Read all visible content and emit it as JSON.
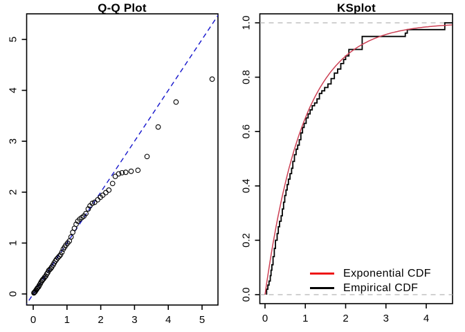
{
  "window": {
    "background": "#ffffff"
  },
  "chart_data": [
    {
      "type": "scatter",
      "title": "Q-Q Plot",
      "xlabel": "",
      "ylabel": "",
      "x_tick_labels": [
        "0",
        "1",
        "2",
        "3",
        "4",
        "5"
      ],
      "x_tick_values": [
        0,
        1,
        2,
        3,
        4,
        5
      ],
      "y_tick_labels": [
        "0",
        "1",
        "2",
        "3",
        "4",
        "5"
      ],
      "y_tick_values": [
        0,
        1,
        2,
        3,
        4,
        5
      ],
      "xlim": [
        -0.2,
        5.47
      ],
      "ylim": [
        -0.22,
        5.5
      ],
      "grid": false,
      "point_style": {
        "shape": "open-circle",
        "color": "#000000"
      },
      "reference_line": {
        "slope": 1,
        "intercept": 0,
        "style": "dashed",
        "color": "#1414cc"
      },
      "points": [
        [
          0.02,
          0.02
        ],
        [
          0.03,
          0.03
        ],
        [
          0.05,
          0.04
        ],
        [
          0.07,
          0.06
        ],
        [
          0.09,
          0.08
        ],
        [
          0.11,
          0.1
        ],
        [
          0.13,
          0.12
        ],
        [
          0.16,
          0.14
        ],
        [
          0.18,
          0.17
        ],
        [
          0.21,
          0.2
        ],
        [
          0.23,
          0.23
        ],
        [
          0.26,
          0.26
        ],
        [
          0.28,
          0.28
        ],
        [
          0.31,
          0.3
        ],
        [
          0.34,
          0.33
        ],
        [
          0.37,
          0.35
        ],
        [
          0.4,
          0.39
        ],
        [
          0.43,
          0.42
        ],
        [
          0.46,
          0.46
        ],
        [
          0.49,
          0.48
        ],
        [
          0.52,
          0.5
        ],
        [
          0.55,
          0.53
        ],
        [
          0.59,
          0.57
        ],
        [
          0.62,
          0.61
        ],
        [
          0.66,
          0.65
        ],
        [
          0.69,
          0.68
        ],
        [
          0.73,
          0.71
        ],
        [
          0.77,
          0.74
        ],
        [
          0.81,
          0.77
        ],
        [
          0.85,
          0.82
        ],
        [
          0.89,
          0.88
        ],
        [
          0.93,
          0.92
        ],
        [
          0.97,
          0.96
        ],
        [
          1.02,
          1.0
        ],
        [
          1.07,
          1.04
        ],
        [
          1.12,
          1.12
        ],
        [
          1.17,
          1.21
        ],
        [
          1.22,
          1.29
        ],
        [
          1.27,
          1.37
        ],
        [
          1.32,
          1.43
        ],
        [
          1.38,
          1.47
        ],
        [
          1.44,
          1.5
        ],
        [
          1.5,
          1.53
        ],
        [
          1.56,
          1.58
        ],
        [
          1.63,
          1.67
        ],
        [
          1.68,
          1.73
        ],
        [
          1.75,
          1.78
        ],
        [
          1.82,
          1.8
        ],
        [
          1.91,
          1.85
        ],
        [
          1.99,
          1.9
        ],
        [
          2.06,
          1.94
        ],
        [
          2.15,
          1.99
        ],
        [
          2.24,
          2.04
        ],
        [
          2.35,
          2.17
        ],
        [
          2.43,
          2.31
        ],
        [
          2.53,
          2.36
        ],
        [
          2.63,
          2.38
        ],
        [
          2.74,
          2.39
        ],
        [
          2.9,
          2.41
        ],
        [
          3.1,
          2.43
        ],
        [
          3.37,
          2.7
        ],
        [
          3.7,
          3.28
        ],
        [
          4.23,
          3.77
        ],
        [
          5.3,
          4.22
        ]
      ]
    },
    {
      "type": "line",
      "title": "KSplot",
      "xlabel": "",
      "ylabel": "",
      "x_tick_labels": [
        "0",
        "1",
        "2",
        "3",
        "4"
      ],
      "x_tick_values": [
        0,
        1,
        2,
        3,
        4
      ],
      "y_tick_labels": [
        "0.0",
        "0.2",
        "0.4",
        "0.6",
        "0.8",
        "1.0"
      ],
      "y_tick_values": [
        0,
        0.2,
        0.4,
        0.6,
        0.8,
        1.0
      ],
      "xlim": [
        -0.14,
        4.65
      ],
      "ylim": [
        -0.04,
        1.04
      ],
      "grid": false,
      "guides": [
        {
          "y": 0,
          "style": "dashed",
          "color": "#b4b4b4"
        },
        {
          "y": 1,
          "style": "dashed",
          "color": "#b4b4b4"
        }
      ],
      "legend": {
        "position": "inside-bottom-right"
      },
      "series": [
        {
          "name": "Exponential CDF",
          "type": "function",
          "formula": "F(x) = 1 - exp(-lambda*x)",
          "lambda": 1.05,
          "color": "#ee1414",
          "curve_color": "#cc3f53"
        },
        {
          "name": "Empirical CDF",
          "type": "step",
          "color": "#000000",
          "steps": [
            [
              0.04,
              0.02
            ],
            [
              0.07,
              0.035
            ],
            [
              0.1,
              0.05
            ],
            [
              0.13,
              0.07
            ],
            [
              0.15,
              0.09
            ],
            [
              0.17,
              0.11
            ],
            [
              0.2,
              0.14
            ],
            [
              0.23,
              0.17
            ],
            [
              0.26,
              0.2
            ],
            [
              0.3,
              0.225
            ],
            [
              0.33,
              0.25
            ],
            [
              0.36,
              0.27
            ],
            [
              0.4,
              0.29
            ],
            [
              0.43,
              0.315
            ],
            [
              0.46,
              0.34
            ],
            [
              0.49,
              0.365
            ],
            [
              0.52,
              0.385
            ],
            [
              0.55,
              0.405
            ],
            [
              0.58,
              0.425
            ],
            [
              0.62,
              0.445
            ],
            [
              0.66,
              0.465
            ],
            [
              0.69,
              0.49
            ],
            [
              0.73,
              0.515
            ],
            [
              0.77,
              0.535
            ],
            [
              0.81,
              0.55
            ],
            [
              0.85,
              0.57
            ],
            [
              0.89,
              0.595
            ],
            [
              0.93,
              0.615
            ],
            [
              0.97,
              0.63
            ],
            [
              1.02,
              0.65
            ],
            [
              1.07,
              0.665
            ],
            [
              1.12,
              0.68
            ],
            [
              1.17,
              0.695
            ],
            [
              1.23,
              0.705
            ],
            [
              1.29,
              0.72
            ],
            [
              1.35,
              0.74
            ],
            [
              1.41,
              0.75
            ],
            [
              1.48,
              0.762
            ],
            [
              1.56,
              0.775
            ],
            [
              1.64,
              0.795
            ],
            [
              1.72,
              0.815
            ],
            [
              1.8,
              0.83
            ],
            [
              1.88,
              0.85
            ],
            [
              1.95,
              0.865
            ],
            [
              2.0,
              0.878
            ],
            [
              2.08,
              0.902
            ],
            [
              2.41,
              0.95
            ],
            [
              3.48,
              0.962
            ],
            [
              3.53,
              0.975
            ],
            [
              4.46,
              1.0
            ]
          ]
        }
      ]
    }
  ]
}
